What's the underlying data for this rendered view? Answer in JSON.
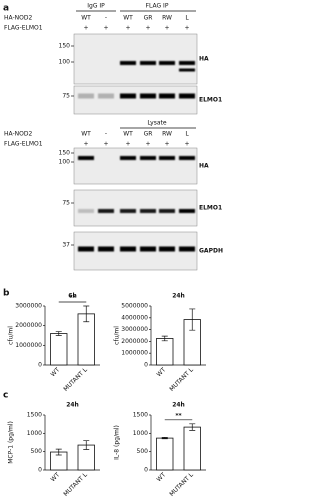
{
  "figure": {
    "panel_labels": [
      "a",
      "b",
      "c"
    ]
  },
  "blots": {
    "ip_headers": [
      "IgG IP",
      "FLAG IP"
    ],
    "lysate_header": "Lysate",
    "row_labels": [
      "HA-NOD2",
      "FLAG-ELMO1"
    ],
    "lanes": [
      "WT",
      "-",
      "WT",
      "GR",
      "RW",
      "L"
    ],
    "flag_elmo1": [
      "+",
      "+",
      "+",
      "+",
      "+",
      "+"
    ],
    "ip_panels": [
      {
        "label": "HA",
        "markers": [
          "150",
          "100"
        ]
      },
      {
        "label": "ELMO1",
        "markers": [
          "75"
        ]
      }
    ],
    "lysate_panels": [
      {
        "label": "HA",
        "markers": [
          "150",
          "100"
        ]
      },
      {
        "label": "ELMO1",
        "markers": [
          "75"
        ]
      },
      {
        "label": "GAPDH",
        "markers": [
          "37"
        ]
      }
    ]
  },
  "chart_data": [
    {
      "type": "bar",
      "title": "6h",
      "ylabel": "cfu/ml",
      "categories": [
        "WT",
        "MUTANT L"
      ],
      "values": [
        1600000,
        2600000
      ],
      "errors": [
        100000,
        400000
      ],
      "color": "#ffffff",
      "ylim": [
        0,
        3000000
      ],
      "yticks": [
        0,
        1000000,
        2000000,
        3000000
      ],
      "annotation": "**"
    },
    {
      "type": "bar",
      "title": "24h",
      "ylabel": "cfu/ml",
      "categories": [
        "WT",
        "MUTANT L"
      ],
      "values": [
        2250000,
        3850000
      ],
      "errors": [
        200000,
        900000
      ],
      "color": "#ffffff",
      "ylim": [
        0,
        5000000
      ],
      "yticks": [
        0,
        1000000,
        2000000,
        3000000,
        4000000,
        5000000
      ]
    },
    {
      "type": "bar",
      "title": "24h",
      "ylabel": "MCP-1 (pg/ml)",
      "categories": [
        "WT",
        "MUTANT L"
      ],
      "values": [
        490,
        680
      ],
      "errors": [
        80,
        120
      ],
      "color": "#ffffff",
      "ylim": [
        0,
        1500
      ],
      "yticks": [
        0,
        500,
        1000,
        1500
      ]
    },
    {
      "type": "bar",
      "title": "24h",
      "ylabel": "IL-8 (pg/ml)",
      "categories": [
        "WT",
        "MUTANT L"
      ],
      "values": [
        870,
        1170
      ],
      "errors": [
        20,
        90
      ],
      "color": "#ffffff",
      "ylim": [
        0,
        1500
      ],
      "yticks": [
        0,
        500,
        1000,
        1500
      ],
      "annotation": "**"
    }
  ]
}
